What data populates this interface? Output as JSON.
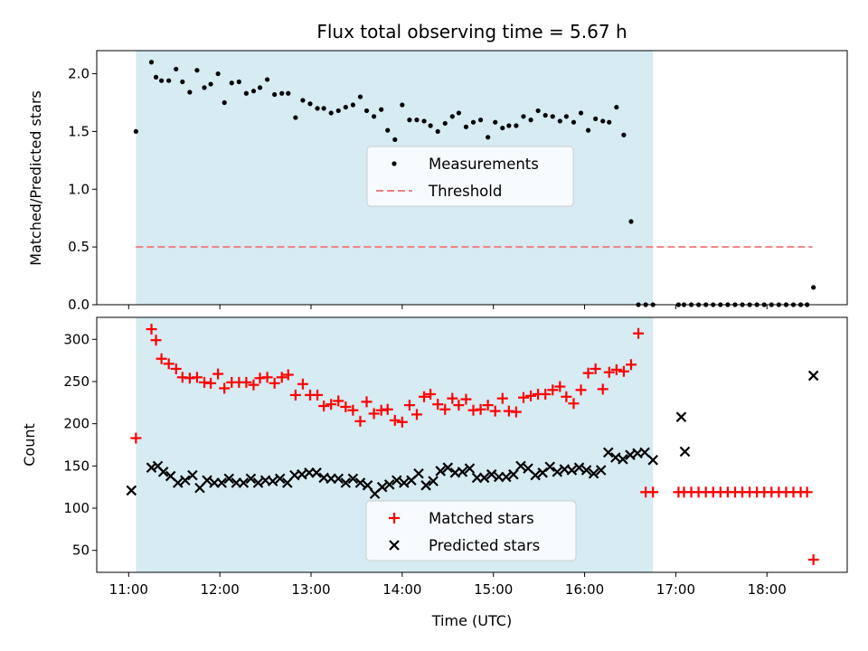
{
  "chart_data": {
    "type": "scatter",
    "title": "Flux total observing time = 5.67 h",
    "xlabel": "Time (UTC)",
    "x_ticks": [
      11,
      12,
      13,
      14,
      15,
      16,
      17,
      18
    ],
    "x_tick_labels": [
      "11:00",
      "12:00",
      "13:00",
      "14:00",
      "15:00",
      "16:00",
      "17:00",
      "18:00"
    ],
    "xlim": [
      10.65,
      18.88
    ],
    "highlight_span": [
      11.08,
      16.75
    ],
    "highlight_color": "#add8e6",
    "top_panel": {
      "ylabel": "Matched/Predicted stars",
      "ylim": [
        0,
        2.2
      ],
      "y_ticks": [
        0,
        0.5,
        1,
        1.5,
        2
      ],
      "y_tick_labels": [
        "0.0",
        "0.5",
        "1.0",
        "1.5",
        "2.0"
      ],
      "legend": [
        "Measurements",
        "Threshold"
      ],
      "legend_loc": "center",
      "threshold": {
        "name": "Threshold",
        "y": 0.5,
        "x_range": [
          11.08,
          18.5
        ],
        "color": "#f08080"
      },
      "measurements": {
        "name": "Measurements",
        "color": "#000000",
        "x": [
          11.08,
          11.25,
          11.3,
          11.36,
          11.44,
          11.52,
          11.59,
          11.67,
          11.75,
          11.83,
          11.9,
          11.98,
          12.05,
          12.13,
          12.21,
          12.29,
          12.37,
          12.44,
          12.52,
          12.6,
          12.68,
          12.75,
          12.83,
          12.91,
          12.99,
          13.07,
          13.14,
          13.22,
          13.3,
          13.38,
          13.46,
          13.54,
          13.61,
          13.69,
          13.77,
          13.84,
          13.92,
          14.0,
          14.08,
          14.16,
          14.24,
          14.31,
          14.39,
          14.47,
          14.55,
          14.62,
          14.7,
          14.78,
          14.86,
          14.94,
          15.02,
          15.1,
          15.17,
          15.25,
          15.33,
          15.41,
          15.49,
          15.57,
          15.65,
          15.73,
          15.8,
          15.88,
          15.96,
          16.04,
          16.12,
          16.2,
          16.27,
          16.35,
          16.43,
          16.51,
          16.59,
          16.67,
          16.75,
          17.03,
          17.09,
          17.17,
          17.25,
          17.33,
          17.41,
          17.49,
          17.57,
          17.65,
          17.73,
          17.81,
          17.89,
          17.97,
          18.05,
          18.13,
          18.21,
          18.29,
          18.37,
          18.44,
          18.51
        ],
        "y": [
          1.5,
          2.1,
          1.97,
          1.94,
          1.94,
          2.04,
          1.93,
          1.84,
          2.03,
          1.88,
          1.91,
          2.0,
          1.75,
          1.92,
          1.93,
          1.83,
          1.85,
          1.88,
          1.95,
          1.82,
          1.83,
          1.83,
          1.62,
          1.77,
          1.74,
          1.7,
          1.7,
          1.66,
          1.68,
          1.71,
          1.73,
          1.8,
          1.68,
          1.63,
          1.69,
          1.51,
          1.43,
          1.73,
          1.6,
          1.6,
          1.59,
          1.55,
          1.5,
          1.57,
          1.63,
          1.66,
          1.54,
          1.58,
          1.6,
          1.45,
          1.58,
          1.53,
          1.55,
          1.55,
          1.63,
          1.6,
          1.68,
          1.64,
          1.63,
          1.59,
          1.63,
          1.58,
          1.66,
          1.51,
          1.61,
          1.59,
          1.58,
          1.71,
          1.47,
          0.72,
          0.0,
          0.0,
          0.0,
          0.0,
          0.0,
          0.0,
          0.0,
          0.0,
          0.0,
          0.0,
          0.0,
          0.0,
          0.0,
          0.0,
          0.0,
          0.0,
          0.0,
          0.0,
          0.0,
          0.0,
          0.0,
          0.0,
          0.15
        ]
      }
    },
    "bottom_panel": {
      "ylabel": "Count",
      "ylim": [
        24,
        326
      ],
      "y_ticks": [
        50,
        100,
        150,
        200,
        250,
        300
      ],
      "y_tick_labels": [
        "50",
        "100",
        "150",
        "200",
        "250",
        "300"
      ],
      "legend": [
        "Matched stars",
        "Predicted stars"
      ],
      "legend_loc": "lower center",
      "series": [
        {
          "name": "Matched stars",
          "marker": "+",
          "color": "#ff0000",
          "x": [
            11.08,
            11.25,
            11.3,
            11.36,
            11.44,
            11.52,
            11.59,
            11.67,
            11.75,
            11.83,
            11.9,
            11.98,
            12.05,
            12.13,
            12.21,
            12.29,
            12.37,
            12.44,
            12.52,
            12.6,
            12.68,
            12.75,
            12.83,
            12.91,
            12.99,
            13.07,
            13.14,
            13.22,
            13.3,
            13.38,
            13.46,
            13.54,
            13.61,
            13.69,
            13.77,
            13.84,
            13.92,
            14.0,
            14.08,
            14.16,
            14.24,
            14.31,
            14.39,
            14.47,
            14.55,
            14.62,
            14.7,
            14.78,
            14.86,
            14.94,
            15.02,
            15.1,
            15.17,
            15.25,
            15.33,
            15.41,
            15.49,
            15.57,
            15.65,
            15.73,
            15.8,
            15.88,
            15.96,
            16.04,
            16.12,
            16.2,
            16.27,
            16.35,
            16.43,
            16.51,
            16.59,
            16.67,
            16.75,
            17.03,
            17.09,
            17.17,
            17.25,
            17.33,
            17.41,
            17.49,
            17.57,
            17.65,
            17.73,
            17.81,
            17.89,
            17.97,
            18.05,
            18.13,
            18.21,
            18.29,
            18.37,
            18.44,
            18.51
          ],
          "y": [
            183,
            312,
            299,
            277,
            271,
            265,
            255,
            254,
            255,
            249,
            248,
            259,
            242,
            249,
            249,
            249,
            246,
            254,
            255,
            248,
            255,
            258,
            234,
            247,
            234,
            234,
            221,
            223,
            227,
            220,
            216,
            203,
            226,
            212,
            216,
            217,
            204,
            202,
            222,
            211,
            232,
            235,
            223,
            217,
            230,
            222,
            229,
            216,
            217,
            222,
            215,
            230,
            215,
            214,
            231,
            233,
            235,
            235,
            240,
            244,
            232,
            224,
            240,
            260,
            265,
            241,
            261,
            264,
            262,
            270,
            307,
            119,
            119,
            119,
            119,
            119,
            119,
            119,
            119,
            119,
            119,
            119,
            119,
            119,
            119,
            119,
            119,
            119,
            119,
            119,
            119,
            119,
            39
          ]
        },
        {
          "name": "Predicted stars",
          "marker": "x",
          "color": "#000000",
          "x": [
            11.03,
            11.25,
            11.32,
            11.38,
            11.46,
            11.54,
            11.62,
            11.7,
            11.78,
            11.86,
            11.94,
            12.02,
            12.1,
            12.18,
            12.26,
            12.34,
            12.42,
            12.5,
            12.58,
            12.66,
            12.74,
            12.82,
            12.9,
            12.98,
            13.06,
            13.14,
            13.22,
            13.3,
            13.38,
            13.46,
            13.54,
            13.62,
            13.7,
            13.78,
            13.86,
            13.94,
            14.02,
            14.1,
            14.18,
            14.26,
            14.34,
            14.42,
            14.5,
            14.58,
            14.66,
            14.74,
            14.82,
            14.9,
            14.98,
            15.06,
            15.14,
            15.22,
            15.3,
            15.38,
            15.46,
            15.54,
            15.62,
            15.7,
            15.78,
            15.86,
            15.94,
            16.02,
            16.1,
            16.18,
            16.26,
            16.34,
            16.42,
            16.5,
            16.58,
            16.66,
            16.75,
            17.06,
            17.1,
            18.51
          ],
          "y": [
            121,
            148,
            150,
            143,
            138,
            130,
            133,
            139,
            124,
            133,
            130,
            130,
            135,
            130,
            130,
            135,
            130,
            133,
            132,
            135,
            130,
            139,
            140,
            142,
            142,
            136,
            135,
            135,
            130,
            135,
            130,
            127,
            117,
            125,
            128,
            133,
            130,
            133,
            141,
            127,
            132,
            144,
            148,
            142,
            143,
            147,
            136,
            136,
            140,
            137,
            137,
            140,
            150,
            147,
            139,
            142,
            149,
            143,
            146,
            145,
            148,
            145,
            141,
            145,
            166,
            160,
            158,
            163,
            165,
            166,
            157,
            208,
            167,
            257
          ]
        }
      ]
    }
  }
}
